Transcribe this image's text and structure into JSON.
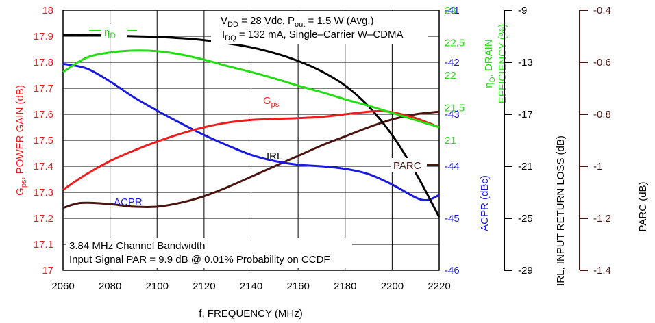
{
  "chart_data": {
    "type": "line",
    "annotations": {
      "conditions_line1_prefix": "V",
      "conditions_line1_sub1": "DD",
      "conditions_line1_mid": " = 28 Vdc, P",
      "conditions_line1_sub2": "out",
      "conditions_line1_suffix": " = 1.5 W (Avg.)",
      "conditions_line2_prefix": "I",
      "conditions_line2_sub": "DQ",
      "conditions_line2_suffix": " = 132 mA, Single–Carrier W–CDMA",
      "bandwidth_line1": "3.84 MHz Channel Bandwidth",
      "bandwidth_line2": "Input Signal PAR = 9.9 dB @ 0.01% Probability on CCDF"
    },
    "x_axis": {
      "label": "f, FREQUENCY (MHz)",
      "range": [
        2060,
        2220
      ],
      "ticks": [
        "2060",
        "2080",
        "2100",
        "2120",
        "2140",
        "2160",
        "2180",
        "2200",
        "2220"
      ]
    },
    "y_left": {
      "label_main": "G",
      "label_sub": "ps",
      "label_rest": ", POWER GAIN (dB)",
      "range": [
        17,
        18
      ],
      "color": "#ee1c1c",
      "ticks": [
        "17",
        "17.1",
        "17.2",
        "17.3",
        "17.4",
        "17.5",
        "17.6",
        "17.7",
        "17.8",
        "17.9",
        "18"
      ]
    },
    "y_right_eff": {
      "label_line1_main": "η",
      "label_line1_sub": "D",
      "label_line1_rest": ", DRAIN",
      "label_line2": "EFFICIENCY (%)",
      "range": [
        19,
        23
      ],
      "color": "#22dd11",
      "ticks": [
        "21",
        "21.5",
        "22",
        "22.5",
        "23"
      ]
    },
    "y_right_acpr": {
      "label": "ACPR (dBc)",
      "range": [
        -46,
        -41
      ],
      "color": "#1a1adc",
      "ticks": [
        "-46",
        "-45",
        "-44",
        "-43",
        "-42",
        "-41"
      ]
    },
    "y_irl": {
      "label": "IRL, INPUT RETURN LOSS (dB)",
      "range": [
        -29,
        -9
      ],
      "color": "#000000",
      "ticks": [
        "-29",
        "-25",
        "-21",
        "-17",
        "-13",
        "-9"
      ]
    },
    "y_parc": {
      "label": "PARC (dB)",
      "range": [
        -1.4,
        -0.4
      ],
      "color": "#4a1410",
      "ticks": [
        "-1.4",
        "-1.2",
        "-1",
        "-0.8",
        "-0.6",
        "-0.4"
      ]
    },
    "series": [
      {
        "name": "G",
        "name_sub": "ps",
        "axis": "y_left",
        "color": "#ee1c1c",
        "x": [
          2060,
          2070,
          2080,
          2090,
          2100,
          2110,
          2120,
          2130,
          2140,
          2150,
          2160,
          2170,
          2180,
          2190,
          2195,
          2200,
          2210,
          2220
        ],
        "y": [
          17.31,
          17.37,
          17.42,
          17.46,
          17.495,
          17.525,
          17.55,
          17.568,
          17.578,
          17.582,
          17.585,
          17.59,
          17.6,
          17.61,
          17.612,
          17.608,
          17.585,
          17.55
        ]
      },
      {
        "name": "η",
        "name_sub": "D",
        "axis": "y_right_eff",
        "color": "#22dd11",
        "x": [
          2060,
          2070,
          2080,
          2090,
          2100,
          2110,
          2120,
          2130,
          2140,
          2150,
          2160,
          2170,
          2180,
          2190,
          2200,
          2210,
          2220
        ],
        "y": [
          22.05,
          22.27,
          22.35,
          22.38,
          22.37,
          22.32,
          22.24,
          22.14,
          22.05,
          21.95,
          21.84,
          21.74,
          21.63,
          21.53,
          21.42,
          21.31,
          21.2
        ]
      },
      {
        "name": "IRL",
        "name_sub": "",
        "axis": "y_irl",
        "color": "#000000",
        "x": [
          2060,
          2070,
          2080,
          2090,
          2100,
          2110,
          2120,
          2130,
          2140,
          2150,
          2160,
          2170,
          2180,
          2190,
          2200,
          2210,
          2220
        ],
        "y": [
          -10.9,
          -10.9,
          -10.95,
          -11.0,
          -11.05,
          -11.15,
          -11.3,
          -11.55,
          -11.85,
          -12.3,
          -12.9,
          -13.7,
          -14.8,
          -16.4,
          -18.6,
          -21.5,
          -24.9
        ]
      },
      {
        "name": "ACPR",
        "name_sub": "",
        "axis": "y_right_acpr",
        "color": "#1a1adc",
        "x": [
          2060,
          2070,
          2080,
          2090,
          2100,
          2110,
          2120,
          2130,
          2140,
          2150,
          2160,
          2170,
          2180,
          2190,
          2200,
          2210,
          2215,
          2220
        ],
        "y": [
          -42.03,
          -42.12,
          -42.37,
          -42.67,
          -42.93,
          -43.17,
          -43.4,
          -43.6,
          -43.78,
          -43.9,
          -43.97,
          -44.0,
          -44.05,
          -44.15,
          -44.35,
          -44.6,
          -44.65,
          -44.55
        ]
      },
      {
        "name": "PARC",
        "name_sub": "",
        "axis": "y_parc",
        "color": "#4a1410",
        "x": [
          2060,
          2065,
          2070,
          2080,
          2090,
          2100,
          2110,
          2120,
          2130,
          2140,
          2150,
          2160,
          2170,
          2180,
          2190,
          2200,
          2210,
          2220
        ],
        "y": [
          -1.16,
          -1.145,
          -1.14,
          -1.145,
          -1.155,
          -1.155,
          -1.14,
          -1.115,
          -1.08,
          -1.04,
          -1.0,
          -0.96,
          -0.92,
          -0.885,
          -0.85,
          -0.82,
          -0.8,
          -0.79
        ]
      }
    ]
  }
}
